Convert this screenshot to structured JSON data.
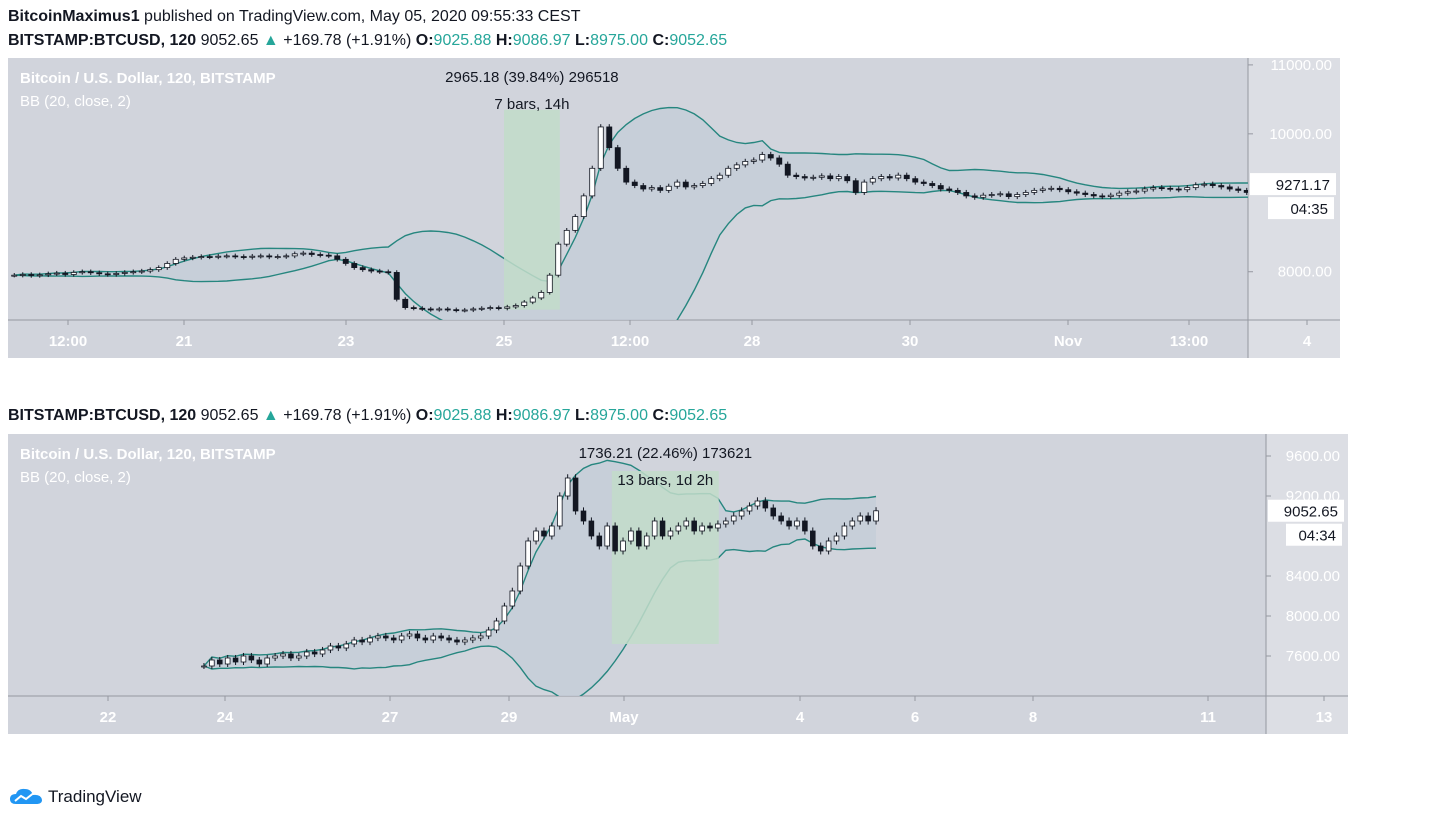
{
  "header": {
    "author": "BitcoinMaximus1",
    "published": "published on TradingView.com, May 05, 2020 09:55:33 CEST"
  },
  "footer": {
    "brand": "TradingView",
    "logo_icon": "tradingview-cloud-icon"
  },
  "colors": {
    "panel_bg": "#d1d4dc",
    "band": "#26867f",
    "band_fill": "#c4cdd8",
    "measure": "#c2dcc9",
    "accent": "#26a69a"
  },
  "chart_data": [
    {
      "type": "candlestick",
      "symbol_line": {
        "symbol": "BITSTAMP:BTCUSD, 120",
        "last": "9052.65",
        "change": "+169.78 (+1.91%)",
        "o_label": "O:",
        "o": "9025.88",
        "h_label": "H:",
        "h": "9086.97",
        "l_label": "L:",
        "l": "8975.00",
        "c_label": "C:",
        "c": "9052.65"
      },
      "title": "Bitcoin / U.S. Dollar, 120, BITSTAMP",
      "indicator": "BB (20, close, 2)",
      "measure": {
        "line1": "2965.18 (39.84%) 296518",
        "line2": "7 bars, 14h",
        "from": 7450,
        "to": 10350
      },
      "x_ticks": [
        "12:00",
        "21",
        "23",
        "25",
        "12:00",
        "28",
        "30",
        "Nov",
        "13:00",
        "4"
      ],
      "y_ticks": [
        "11000.00",
        "10000.00",
        "8000.00"
      ],
      "y_range": [
        7300,
        11100
      ],
      "price_label": "9271.17",
      "countdown": "04:35",
      "closes": [
        7950,
        7960,
        7945,
        7955,
        7970,
        7980,
        7960,
        7990,
        8000,
        7985,
        7970,
        7960,
        7975,
        7990,
        8000,
        8010,
        8030,
        8060,
        8120,
        8180,
        8200,
        8210,
        8220,
        8215,
        8225,
        8230,
        8220,
        8210,
        8225,
        8230,
        8215,
        8220,
        8230,
        8260,
        8270,
        8250,
        8240,
        8230,
        8180,
        8120,
        8060,
        8030,
        8010,
        8000,
        7990,
        7600,
        7480,
        7470,
        7460,
        7450,
        7460,
        7450,
        7440,
        7445,
        7460,
        7470,
        7480,
        7470,
        7490,
        7510,
        7560,
        7620,
        7700,
        7950,
        8400,
        8600,
        8800,
        9100,
        9500,
        10100,
        9800,
        9500,
        9300,
        9250,
        9200,
        9220,
        9180,
        9240,
        9300,
        9230,
        9250,
        9280,
        9350,
        9400,
        9500,
        9550,
        9600,
        9620,
        9700,
        9650,
        9560,
        9400,
        9380,
        9360,
        9370,
        9390,
        9350,
        9380,
        9320,
        9150,
        9300,
        9350,
        9380,
        9360,
        9400,
        9350,
        9300,
        9280,
        9250,
        9200,
        9180,
        9150,
        9100,
        9080,
        9110,
        9120,
        9130,
        9090,
        9120,
        9150,
        9180,
        9200,
        9210,
        9190,
        9160,
        9140,
        9120,
        9100,
        9090,
        9110,
        9140,
        9160,
        9170,
        9200,
        9220,
        9210,
        9200,
        9190,
        9220,
        9260,
        9270,
        9250,
        9230,
        9200,
        9180,
        9150,
        9140,
        9130,
        9150,
        9160,
        9180,
        9200,
        9220,
        9230,
        9250,
        9271
      ]
    },
    {
      "type": "candlestick",
      "symbol_line": {
        "symbol": "BITSTAMP:BTCUSD, 120",
        "last": "9052.65",
        "change": "+169.78 (+1.91%)",
        "o_label": "O:",
        "o": "9025.88",
        "h_label": "H:",
        "h": "9086.97",
        "l_label": "L:",
        "l": "8975.00",
        "c_label": "C:",
        "c": "9052.65"
      },
      "title": "Bitcoin / U.S. Dollar, 120, BITSTAMP",
      "indicator": "BB (20, close, 2)",
      "measure": {
        "line1": "1736.21 (22.46%) 173621",
        "line2": "13 bars, 1d 2h",
        "from": 7720,
        "to": 9450
      },
      "x_ticks": [
        "22",
        "24",
        "27",
        "29",
        "May",
        "4",
        "6",
        "8",
        "11",
        "13"
      ],
      "y_ticks": [
        "9600.00",
        "9200.00",
        "8400.00",
        "8000.00",
        "7600.00"
      ],
      "y_range": [
        7200,
        9820
      ],
      "price_label": "9052.65",
      "countdown": "04:34",
      "closes": [
        7500,
        7560,
        7520,
        7580,
        7540,
        7600,
        7560,
        7520,
        7580,
        7600,
        7620,
        7580,
        7600,
        7640,
        7620,
        7660,
        7700,
        7680,
        7720,
        7760,
        7740,
        7780,
        7800,
        7780,
        7760,
        7800,
        7820,
        7780,
        7760,
        7800,
        7780,
        7760,
        7740,
        7760,
        7780,
        7800,
        7860,
        7950,
        8100,
        8250,
        8500,
        8750,
        8850,
        8800,
        8900,
        9200,
        9380,
        9050,
        8950,
        8800,
        8700,
        8900,
        8650,
        8750,
        8850,
        8700,
        8800,
        8950,
        8800,
        8850,
        8900,
        8950,
        8850,
        8900,
        8880,
        8920,
        8950,
        9000,
        9050,
        9100,
        9150,
        9080,
        9000,
        8950,
        8900,
        8950,
        8850,
        8700,
        8650,
        8750,
        8800,
        8900,
        8950,
        9000,
        8950,
        9052
      ]
    }
  ]
}
